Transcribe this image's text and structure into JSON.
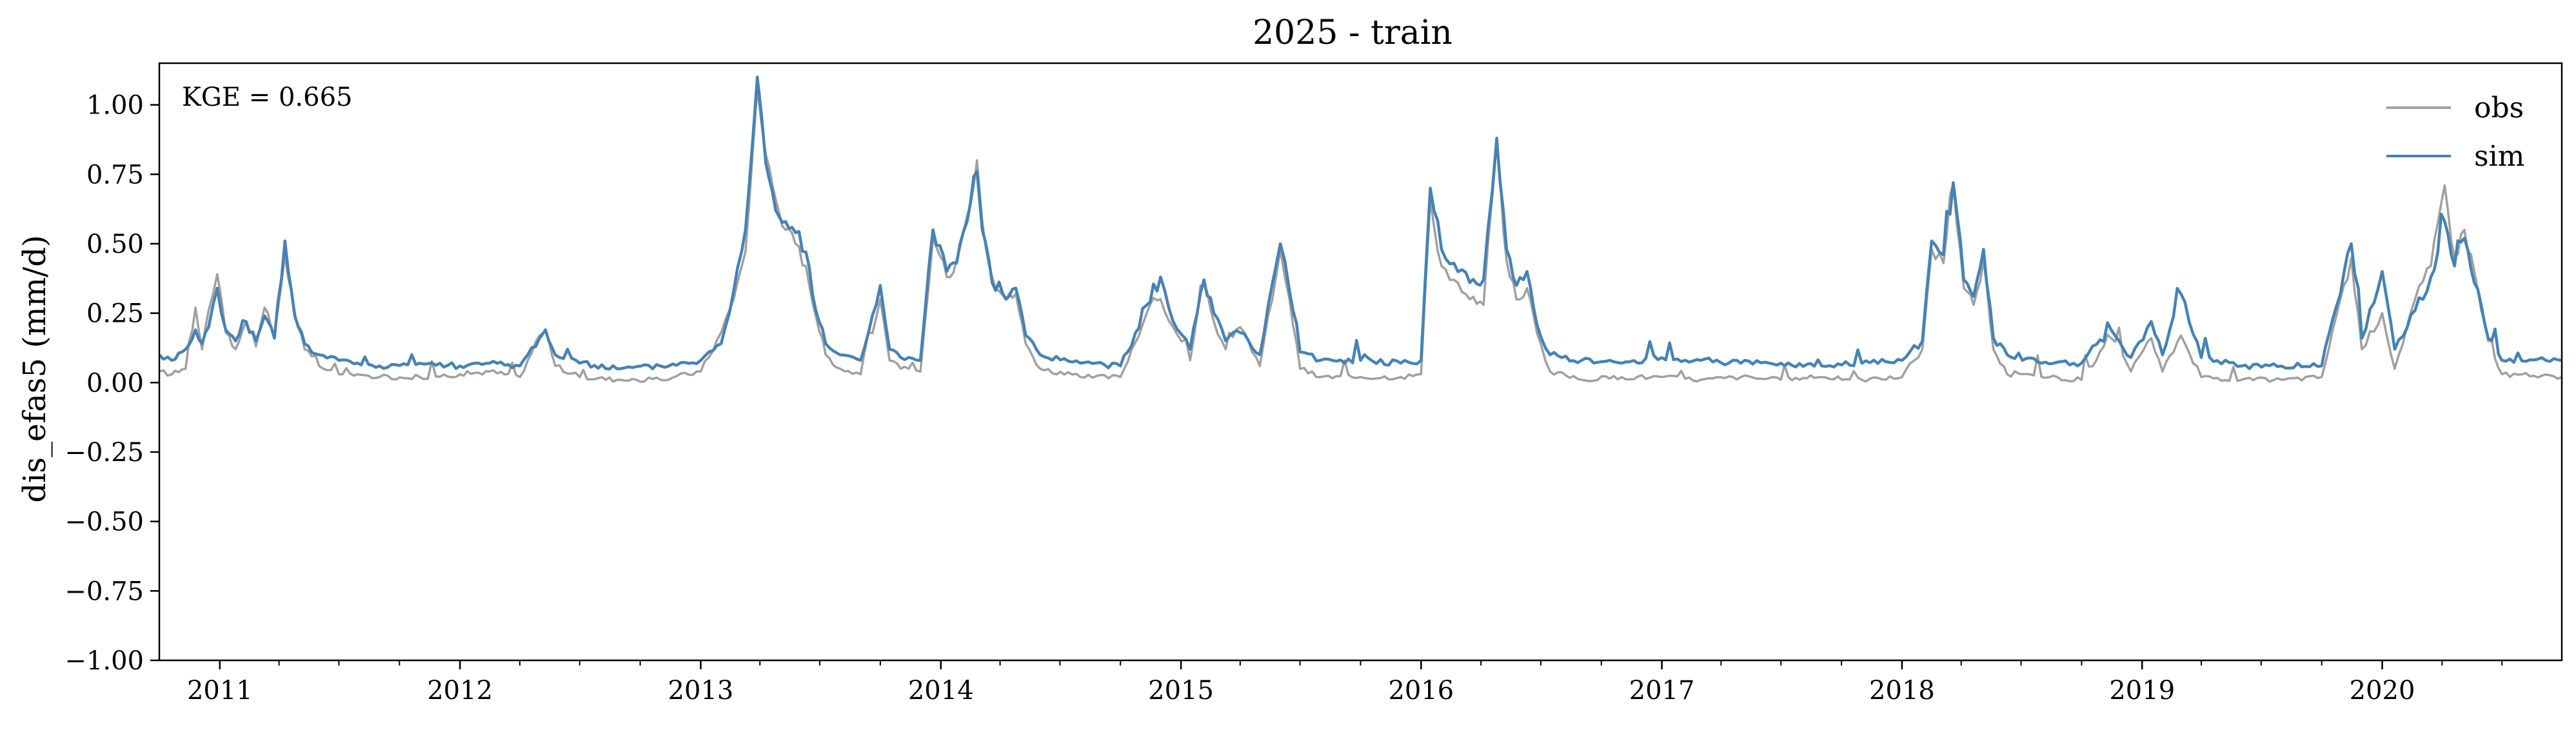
{
  "chart_data": {
    "type": "line",
    "title": "2025 - train",
    "xlabel": "",
    "ylabel": "dis_efas5 (mm/d)",
    "annotation": "KGE = 0.665",
    "legend_position": "top-right",
    "grid": false,
    "xlim": [
      "2010-10-01",
      "2020-09-30"
    ],
    "ylim": [
      -1.0,
      1.15
    ],
    "x_ticks": [
      "2011",
      "2012",
      "2013",
      "2014",
      "2015",
      "2016",
      "2017",
      "2018",
      "2019",
      "2020"
    ],
    "y_ticks": [
      "1.00",
      "0.75",
      "0.50",
      "0.25",
      "0.00",
      "−0.25",
      "−0.50",
      "−0.75",
      "−1.00"
    ],
    "y_tick_values": [
      1.0,
      0.75,
      0.5,
      0.25,
      0.0,
      -0.25,
      -0.5,
      -0.75,
      -1.0
    ],
    "series": [
      {
        "name": "obs",
        "color": "#a0a0a0",
        "points": [
          [
            "2010-10-01",
            0.04
          ],
          [
            "2010-10-20",
            0.03
          ],
          [
            "2010-11-10",
            0.05
          ],
          [
            "2010-11-25",
            0.27
          ],
          [
            "2010-12-05",
            0.12
          ],
          [
            "2010-12-15",
            0.26
          ],
          [
            "2010-12-28",
            0.39
          ],
          [
            "2011-01-10",
            0.18
          ],
          [
            "2011-01-25",
            0.12
          ],
          [
            "2011-02-10",
            0.22
          ],
          [
            "2011-02-25",
            0.13
          ],
          [
            "2011-03-10",
            0.27
          ],
          [
            "2011-03-25",
            0.17
          ],
          [
            "2011-04-10",
            0.46
          ],
          [
            "2011-04-25",
            0.25
          ],
          [
            "2011-05-10",
            0.12
          ],
          [
            "2011-06-01",
            0.06
          ],
          [
            "2011-07-01",
            0.03
          ],
          [
            "2011-09-01",
            0.02
          ],
          [
            "2011-11-01",
            0.02
          ],
          [
            "2012-01-01",
            0.03
          ],
          [
            "2012-02-15",
            0.04
          ],
          [
            "2012-04-01",
            0.02
          ],
          [
            "2012-05-01",
            0.17
          ],
          [
            "2012-05-10",
            0.19
          ],
          [
            "2012-05-25",
            0.06
          ],
          [
            "2012-07-01",
            0.02
          ],
          [
            "2012-09-01",
            0.01
          ],
          [
            "2012-11-01",
            0.01
          ],
          [
            "2013-01-01",
            0.04
          ],
          [
            "2013-02-01",
            0.18
          ],
          [
            "2013-02-20",
            0.3
          ],
          [
            "2013-03-10",
            0.47
          ],
          [
            "2013-03-28",
            1.06
          ],
          [
            "2013-04-10",
            0.82
          ],
          [
            "2013-04-25",
            0.66
          ],
          [
            "2013-05-10",
            0.55
          ],
          [
            "2013-05-25",
            0.5
          ],
          [
            "2013-06-10",
            0.42
          ],
          [
            "2013-06-25",
            0.24
          ],
          [
            "2013-07-10",
            0.1
          ],
          [
            "2013-08-01",
            0.05
          ],
          [
            "2013-09-01",
            0.03
          ],
          [
            "2013-10-01",
            0.3
          ],
          [
            "2013-10-15",
            0.08
          ],
          [
            "2013-11-01",
            0.05
          ],
          [
            "2013-12-01",
            0.04
          ],
          [
            "2013-12-20",
            0.52
          ],
          [
            "2014-01-10",
            0.38
          ],
          [
            "2014-01-25",
            0.44
          ],
          [
            "2014-02-10",
            0.6
          ],
          [
            "2014-02-25",
            0.8
          ],
          [
            "2014-03-05",
            0.58
          ],
          [
            "2014-03-20",
            0.38
          ],
          [
            "2014-04-10",
            0.3
          ],
          [
            "2014-04-25",
            0.32
          ],
          [
            "2014-05-10",
            0.14
          ],
          [
            "2014-06-01",
            0.05
          ],
          [
            "2014-08-01",
            0.02
          ],
          [
            "2014-10-01",
            0.02
          ],
          [
            "2014-11-15",
            0.28
          ],
          [
            "2014-12-01",
            0.3
          ],
          [
            "2014-12-20",
            0.2
          ],
          [
            "2015-01-15",
            0.08
          ],
          [
            "2015-02-05",
            0.35
          ],
          [
            "2015-02-20",
            0.22
          ],
          [
            "2015-03-10",
            0.12
          ],
          [
            "2015-04-01",
            0.2
          ],
          [
            "2015-05-01",
            0.06
          ],
          [
            "2015-06-01",
            0.48
          ],
          [
            "2015-06-15",
            0.3
          ],
          [
            "2015-07-01",
            0.05
          ],
          [
            "2015-08-01",
            0.02
          ],
          [
            "2015-10-01",
            0.02
          ],
          [
            "2015-12-01",
            0.02
          ],
          [
            "2016-01-01",
            0.03
          ],
          [
            "2016-01-15",
            0.66
          ],
          [
            "2016-02-01",
            0.42
          ],
          [
            "2016-02-20",
            0.37
          ],
          [
            "2016-03-15",
            0.3
          ],
          [
            "2016-04-05",
            0.28
          ],
          [
            "2016-04-25",
            0.86
          ],
          [
            "2016-05-10",
            0.44
          ],
          [
            "2016-05-25",
            0.3
          ],
          [
            "2016-06-10",
            0.34
          ],
          [
            "2016-06-25",
            0.18
          ],
          [
            "2016-07-15",
            0.04
          ],
          [
            "2016-09-01",
            0.01
          ],
          [
            "2016-11-01",
            0.02
          ],
          [
            "2017-01-01",
            0.02
          ],
          [
            "2017-03-01",
            0.01
          ],
          [
            "2017-05-01",
            0.02
          ],
          [
            "2017-07-01",
            0.01
          ],
          [
            "2017-09-01",
            0.02
          ],
          [
            "2017-11-01",
            0.01
          ],
          [
            "2018-01-01",
            0.02
          ],
          [
            "2018-02-01",
            0.12
          ],
          [
            "2018-02-15",
            0.48
          ],
          [
            "2018-03-05",
            0.43
          ],
          [
            "2018-03-20",
            0.72
          ],
          [
            "2018-04-05",
            0.34
          ],
          [
            "2018-04-20",
            0.28
          ],
          [
            "2018-05-05",
            0.44
          ],
          [
            "2018-05-20",
            0.12
          ],
          [
            "2018-06-10",
            0.03
          ],
          [
            "2018-08-01",
            0.02
          ],
          [
            "2018-10-01",
            0.01
          ],
          [
            "2018-11-15",
            0.16
          ],
          [
            "2018-12-15",
            0.04
          ],
          [
            "2019-01-15",
            0.16
          ],
          [
            "2019-02-01",
            0.04
          ],
          [
            "2019-03-01",
            0.17
          ],
          [
            "2019-04-01",
            0.02
          ],
          [
            "2019-06-01",
            0.01
          ],
          [
            "2019-08-01",
            0.01
          ],
          [
            "2019-10-01",
            0.02
          ],
          [
            "2019-11-15",
            0.45
          ],
          [
            "2019-12-01",
            0.12
          ],
          [
            "2020-01-01",
            0.25
          ],
          [
            "2020-01-20",
            0.05
          ],
          [
            "2020-02-20",
            0.3
          ],
          [
            "2020-03-15",
            0.42
          ],
          [
            "2020-04-05",
            0.71
          ],
          [
            "2020-04-20",
            0.45
          ],
          [
            "2020-05-05",
            0.55
          ],
          [
            "2020-05-20",
            0.4
          ],
          [
            "2020-06-10",
            0.15
          ],
          [
            "2020-07-01",
            0.03
          ],
          [
            "2020-09-30",
            0.02
          ]
        ]
      },
      {
        "name": "sim",
        "color": "#4682b4",
        "points": [
          [
            "2010-10-01",
            0.1
          ],
          [
            "2010-10-20",
            0.08
          ],
          [
            "2010-11-10",
            0.12
          ],
          [
            "2010-11-25",
            0.19
          ],
          [
            "2010-12-05",
            0.14
          ],
          [
            "2010-12-15",
            0.2
          ],
          [
            "2010-12-28",
            0.34
          ],
          [
            "2011-01-10",
            0.19
          ],
          [
            "2011-01-25",
            0.15
          ],
          [
            "2011-02-10",
            0.22
          ],
          [
            "2011-02-25",
            0.15
          ],
          [
            "2011-03-10",
            0.24
          ],
          [
            "2011-03-25",
            0.16
          ],
          [
            "2011-04-10",
            0.51
          ],
          [
            "2011-04-25",
            0.24
          ],
          [
            "2011-05-10",
            0.14
          ],
          [
            "2011-06-01",
            0.1
          ],
          [
            "2011-07-01",
            0.08
          ],
          [
            "2011-09-01",
            0.06
          ],
          [
            "2011-11-01",
            0.07
          ],
          [
            "2012-01-01",
            0.06
          ],
          [
            "2012-02-15",
            0.07
          ],
          [
            "2012-04-01",
            0.06
          ],
          [
            "2012-05-01",
            0.16
          ],
          [
            "2012-05-10",
            0.19
          ],
          [
            "2012-05-25",
            0.1
          ],
          [
            "2012-07-01",
            0.07
          ],
          [
            "2012-09-01",
            0.05
          ],
          [
            "2012-11-01",
            0.06
          ],
          [
            "2013-01-01",
            0.08
          ],
          [
            "2013-02-01",
            0.14
          ],
          [
            "2013-02-20",
            0.33
          ],
          [
            "2013-03-10",
            0.55
          ],
          [
            "2013-03-28",
            1.1
          ],
          [
            "2013-04-10",
            0.79
          ],
          [
            "2013-04-25",
            0.62
          ],
          [
            "2013-05-10",
            0.58
          ],
          [
            "2013-05-25",
            0.54
          ],
          [
            "2013-06-10",
            0.47
          ],
          [
            "2013-06-25",
            0.26
          ],
          [
            "2013-07-10",
            0.14
          ],
          [
            "2013-08-01",
            0.1
          ],
          [
            "2013-09-01",
            0.08
          ],
          [
            "2013-10-01",
            0.35
          ],
          [
            "2013-10-15",
            0.12
          ],
          [
            "2013-11-01",
            0.09
          ],
          [
            "2013-12-01",
            0.08
          ],
          [
            "2013-12-20",
            0.55
          ],
          [
            "2014-01-10",
            0.4
          ],
          [
            "2014-01-25",
            0.43
          ],
          [
            "2014-02-10",
            0.58
          ],
          [
            "2014-02-25",
            0.76
          ],
          [
            "2014-03-05",
            0.55
          ],
          [
            "2014-03-20",
            0.36
          ],
          [
            "2014-04-10",
            0.3
          ],
          [
            "2014-04-25",
            0.34
          ],
          [
            "2014-05-10",
            0.17
          ],
          [
            "2014-06-01",
            0.1
          ],
          [
            "2014-08-01",
            0.07
          ],
          [
            "2014-10-01",
            0.06
          ],
          [
            "2014-11-15",
            0.29
          ],
          [
            "2014-12-01",
            0.38
          ],
          [
            "2014-12-20",
            0.22
          ],
          [
            "2015-01-15",
            0.12
          ],
          [
            "2015-02-05",
            0.37
          ],
          [
            "2015-02-20",
            0.25
          ],
          [
            "2015-03-10",
            0.15
          ],
          [
            "2015-04-01",
            0.18
          ],
          [
            "2015-05-01",
            0.1
          ],
          [
            "2015-06-01",
            0.5
          ],
          [
            "2015-06-15",
            0.33
          ],
          [
            "2015-07-01",
            0.11
          ],
          [
            "2015-08-01",
            0.08
          ],
          [
            "2015-10-01",
            0.08
          ],
          [
            "2015-12-01",
            0.07
          ],
          [
            "2016-01-01",
            0.08
          ],
          [
            "2016-01-15",
            0.7
          ],
          [
            "2016-02-01",
            0.48
          ],
          [
            "2016-02-20",
            0.43
          ],
          [
            "2016-03-15",
            0.36
          ],
          [
            "2016-04-05",
            0.37
          ],
          [
            "2016-04-25",
            0.88
          ],
          [
            "2016-05-10",
            0.48
          ],
          [
            "2016-05-25",
            0.35
          ],
          [
            "2016-06-10",
            0.4
          ],
          [
            "2016-06-25",
            0.21
          ],
          [
            "2016-07-15",
            0.1
          ],
          [
            "2016-09-01",
            0.08
          ],
          [
            "2016-11-01",
            0.07
          ],
          [
            "2017-01-01",
            0.09
          ],
          [
            "2017-03-01",
            0.08
          ],
          [
            "2017-05-01",
            0.07
          ],
          [
            "2017-07-01",
            0.07
          ],
          [
            "2017-09-01",
            0.06
          ],
          [
            "2017-11-01",
            0.07
          ],
          [
            "2018-01-01",
            0.08
          ],
          [
            "2018-02-01",
            0.15
          ],
          [
            "2018-02-15",
            0.51
          ],
          [
            "2018-03-05",
            0.46
          ],
          [
            "2018-03-20",
            0.72
          ],
          [
            "2018-04-05",
            0.37
          ],
          [
            "2018-04-20",
            0.31
          ],
          [
            "2018-05-05",
            0.48
          ],
          [
            "2018-05-20",
            0.16
          ],
          [
            "2018-06-10",
            0.1
          ],
          [
            "2018-08-01",
            0.07
          ],
          [
            "2018-10-01",
            0.07
          ],
          [
            "2018-11-15",
            0.19
          ],
          [
            "2018-12-15",
            0.09
          ],
          [
            "2019-01-15",
            0.22
          ],
          [
            "2019-02-01",
            0.1
          ],
          [
            "2019-03-01",
            0.32
          ],
          [
            "2019-04-01",
            0.09
          ],
          [
            "2019-06-01",
            0.06
          ],
          [
            "2019-08-01",
            0.06
          ],
          [
            "2019-10-01",
            0.06
          ],
          [
            "2019-11-15",
            0.5
          ],
          [
            "2019-12-01",
            0.16
          ],
          [
            "2020-01-01",
            0.4
          ],
          [
            "2020-01-20",
            0.12
          ],
          [
            "2020-02-20",
            0.26
          ],
          [
            "2020-03-15",
            0.38
          ],
          [
            "2020-04-05",
            0.58
          ],
          [
            "2020-04-20",
            0.42
          ],
          [
            "2020-05-05",
            0.52
          ],
          [
            "2020-05-20",
            0.36
          ],
          [
            "2020-06-10",
            0.16
          ],
          [
            "2020-07-01",
            0.08
          ],
          [
            "2020-09-30",
            0.08
          ]
        ]
      }
    ]
  }
}
